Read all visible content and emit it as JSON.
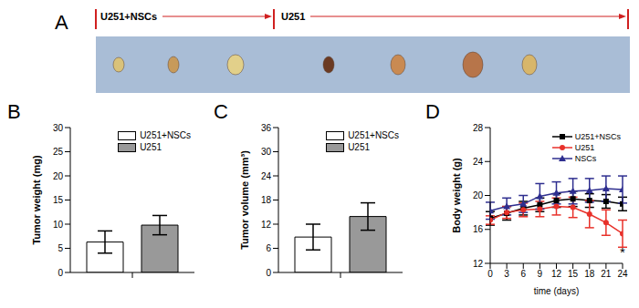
{
  "photo": {
    "panel": "A",
    "groups": [
      "U251+NSCs",
      "U251"
    ]
  },
  "chart_data": [
    {
      "panel": "B",
      "type": "bar",
      "ylabel": "Tumor weight (mg)",
      "categories": [
        null
      ],
      "series": [
        {
          "name": "U251+NSCs",
          "color": "#ffffff",
          "values": [
            6.3
          ],
          "error": [
            2.3
          ]
        },
        {
          "name": "U251",
          "color": "#999999",
          "values": [
            9.8
          ],
          "error": [
            2.0
          ]
        }
      ],
      "ylim": [
        0,
        30
      ],
      "yticks": [
        0,
        5,
        10,
        15,
        20,
        25,
        30
      ],
      "legend": "upper right"
    },
    {
      "panel": "C",
      "type": "bar",
      "ylabel": "Tumor volume (mm³)",
      "categories": [
        null
      ],
      "series": [
        {
          "name": "U251+NSCs",
          "color": "#ffffff",
          "values": [
            8.8
          ],
          "error": [
            3.2
          ]
        },
        {
          "name": "U251",
          "color": "#999999",
          "values": [
            13.9
          ],
          "error": [
            3.4
          ]
        }
      ],
      "ylim": [
        0,
        36
      ],
      "yticks": [
        0,
        6,
        12,
        18,
        24,
        30,
        36
      ],
      "legend": "upper right"
    },
    {
      "panel": "D",
      "type": "line",
      "xlabel": "time (days)",
      "ylabel": "Body weight (g)",
      "x": [
        0,
        3,
        6,
        9,
        12,
        15,
        18,
        21,
        24
      ],
      "series": [
        {
          "name": "U251+NSCs",
          "color": "#000000",
          "marker": "square",
          "values": [
            17.3,
            17.9,
            18.5,
            18.9,
            19.4,
            19.6,
            19.4,
            19.3,
            19.0
          ],
          "error": [
            0.8,
            0.8,
            0.8,
            0.8,
            0.8,
            0.9,
            0.8,
            0.8,
            0.8
          ]
        },
        {
          "name": "U251",
          "color": "#e8312a",
          "marker": "circle",
          "values": [
            17.1,
            18.0,
            18.3,
            18.4,
            18.7,
            18.6,
            17.8,
            16.8,
            15.5
          ],
          "error": [
            0.5,
            0.7,
            0.8,
            0.9,
            1.0,
            1.2,
            1.6,
            1.5,
            1.6
          ]
        },
        {
          "name": "NSCs",
          "color": "#2e2e8f",
          "marker": "triangle",
          "values": [
            18.2,
            18.7,
            19.0,
            19.9,
            20.3,
            20.5,
            20.6,
            20.8,
            20.7
          ],
          "error": [
            1.0,
            1.0,
            1.0,
            1.5,
            1.3,
            1.5,
            1.4,
            1.5,
            1.6
          ]
        }
      ],
      "xlim": [
        0,
        24
      ],
      "xticks": [
        0,
        3,
        6,
        9,
        12,
        15,
        18,
        21,
        24
      ],
      "ylim": [
        12,
        28
      ],
      "yticks": [
        12,
        16,
        20,
        24,
        28
      ],
      "legend": "upper right",
      "annotations": [
        {
          "text": "*",
          "x": 24,
          "y": 13.3
        }
      ]
    }
  ]
}
